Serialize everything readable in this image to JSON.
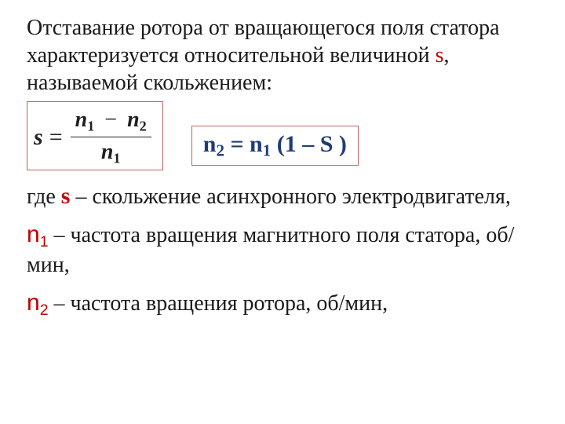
{
  "intro": {
    "part1": "Отставание ротора от вращающегося поля статора характеризуется относительной величиной ",
    "s": "s",
    "part2": ", называемой скольжением:"
  },
  "formula1": {
    "lhs": "s",
    "eq": "=",
    "num_left": "n",
    "num_left_sub": "1",
    "minus": "−",
    "num_right": "n",
    "num_right_sub": "2",
    "den": "n",
    "den_sub": "1",
    "border_color": "#c06060",
    "text_color": "#202020"
  },
  "formula2": {
    "text_n2": "n",
    "sub2": "2",
    "eq": " = ",
    "text_n1": "n",
    "sub1": "1",
    "rest": " (1 – S )",
    "color": "#1f3b78",
    "border_color": "#c06060"
  },
  "defs": {
    "where": "где ",
    "s_sym": "s",
    "s_text": " – скольжение асинхронного электродвигателя,",
    "n1_sym": "n",
    "n1_sub": "1",
    "n1_text": " – частота вращения магнитного поля статора, об/мин,",
    "n2_sym": "n",
    "n2_sub": "2",
    "n2_text": " – частота вращения ротора, об/мин,"
  },
  "colors": {
    "red": "#c00000",
    "text": "#1a1a1a",
    "background": "#ffffff"
  }
}
